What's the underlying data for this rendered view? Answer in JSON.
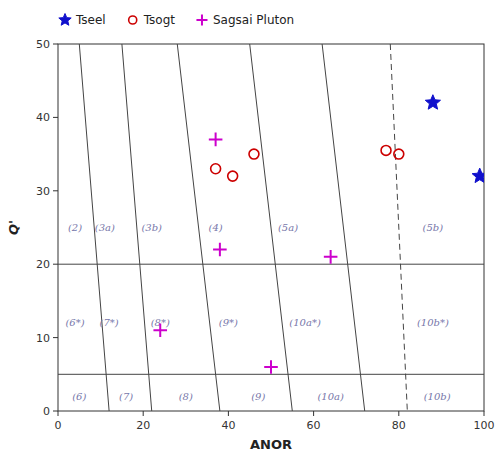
{
  "chart_data": {
    "type": "scatter",
    "x_label": "ANOR",
    "y_label": "Q'",
    "xlim": [
      0,
      100
    ],
    "ylim": [
      0,
      50
    ],
    "xticks": [
      0,
      20,
      40,
      60,
      80,
      100
    ],
    "yticks": [
      0,
      10,
      20,
      30,
      40,
      50
    ],
    "grid": false,
    "legend": "top",
    "hlines": [
      {
        "y": 5,
        "color": "#444444"
      },
      {
        "y": 20,
        "color": "#444444"
      }
    ],
    "lines": [
      {
        "x": [
          5,
          12
        ],
        "y": [
          50,
          0
        ],
        "color": "#444444",
        "line_style": "solid"
      },
      {
        "x": [
          15,
          22
        ],
        "y": [
          50,
          0
        ],
        "color": "#444444",
        "line_style": "solid"
      },
      {
        "x": [
          28,
          38
        ],
        "y": [
          50,
          0
        ],
        "color": "#444444",
        "line_style": "solid"
      },
      {
        "x": [
          45,
          55
        ],
        "y": [
          50,
          0
        ],
        "color": "#444444",
        "line_style": "solid"
      },
      {
        "x": [
          62,
          72
        ],
        "y": [
          50,
          0
        ],
        "color": "#444444",
        "line_style": "solid"
      },
      {
        "x": [
          78,
          82
        ],
        "y": [
          50,
          0
        ],
        "color": "#444444",
        "line_style": "dashed"
      }
    ],
    "annotations": [
      {
        "x": 4,
        "y": 25,
        "text": "(2)",
        "color": "#7777aa"
      },
      {
        "x": 11,
        "y": 25,
        "text": "(3a)",
        "color": "#7777aa"
      },
      {
        "x": 22,
        "y": 25,
        "text": "(3b)",
        "color": "#7777aa"
      },
      {
        "x": 37,
        "y": 25,
        "text": "(4)",
        "color": "#7777aa"
      },
      {
        "x": 54,
        "y": 25,
        "text": "(5a)",
        "color": "#7777aa"
      },
      {
        "x": 88,
        "y": 25,
        "text": "(5b)",
        "color": "#7777aa"
      },
      {
        "x": 4,
        "y": 12,
        "text": "(6*)",
        "color": "#7777aa"
      },
      {
        "x": 12,
        "y": 12,
        "text": "(7*)",
        "color": "#7777aa"
      },
      {
        "x": 24,
        "y": 12,
        "text": "(8*)",
        "color": "#7777aa"
      },
      {
        "x": 40,
        "y": 12,
        "text": "(9*)",
        "color": "#7777aa"
      },
      {
        "x": 58,
        "y": 12,
        "text": "(10a*)",
        "color": "#7777aa"
      },
      {
        "x": 88,
        "y": 12,
        "text": "(10b*)",
        "color": "#7777aa"
      },
      {
        "x": 5,
        "y": 2,
        "text": "(6)",
        "color": "#7777aa"
      },
      {
        "x": 16,
        "y": 2,
        "text": "(7)",
        "color": "#7777aa"
      },
      {
        "x": 30,
        "y": 2,
        "text": "(8)",
        "color": "#7777aa"
      },
      {
        "x": 47,
        "y": 2,
        "text": "(9)",
        "color": "#7777aa"
      },
      {
        "x": 64,
        "y": 2,
        "text": "(10a)",
        "color": "#7777aa"
      },
      {
        "x": 89,
        "y": 2,
        "text": "(10b)",
        "color": "#7777aa"
      }
    ],
    "series": [
      {
        "name": "Tseel",
        "color": "#1010cc",
        "marker": "star",
        "x": [
          88,
          99
        ],
        "values": [
          42,
          32
        ]
      },
      {
        "name": "Tsogt",
        "color": "#cc0000",
        "marker": "circle",
        "x": [
          37,
          41,
          46,
          77,
          80
        ],
        "values": [
          33,
          32,
          35,
          35.5,
          35
        ]
      },
      {
        "name": "Sagsai Pluton",
        "color": "#cc00cc",
        "marker": "plus",
        "x": [
          37,
          38,
          24,
          50,
          64
        ],
        "values": [
          37,
          22,
          11,
          6,
          21
        ]
      }
    ]
  }
}
